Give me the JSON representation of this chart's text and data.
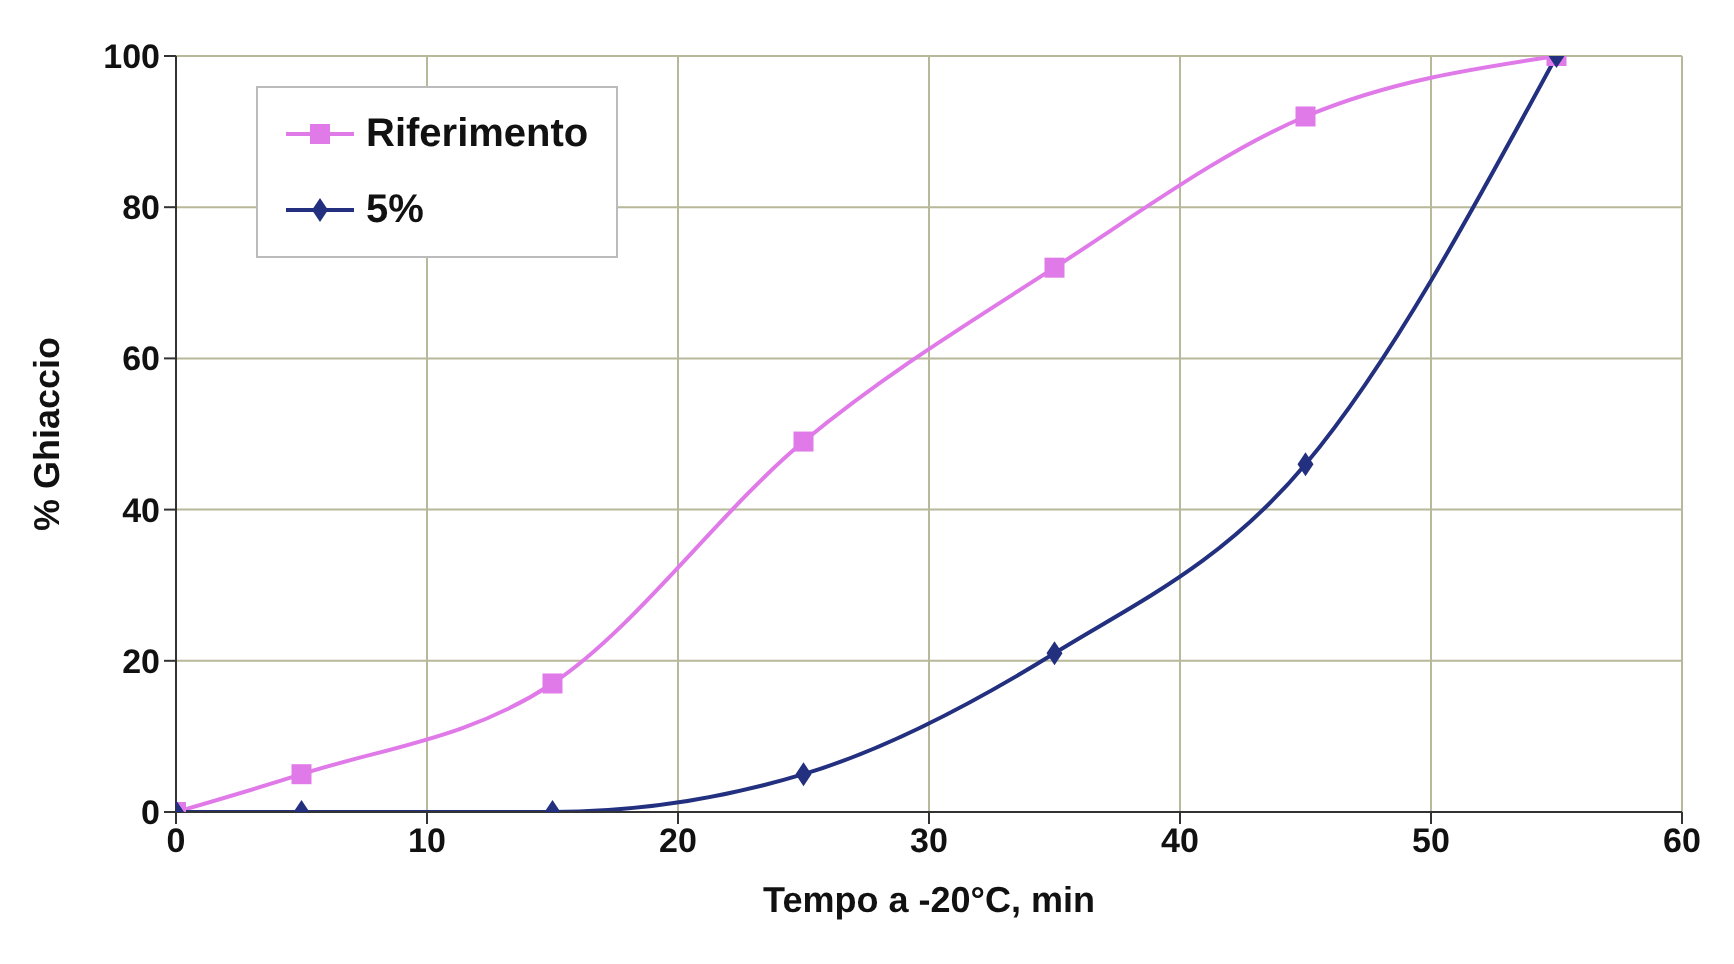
{
  "chart_data": {
    "type": "line",
    "xlabel": "Tempo a -20°C, min",
    "ylabel": "% Ghiaccio",
    "x": [
      0,
      5,
      15,
      25,
      35,
      45,
      55
    ],
    "series": [
      {
        "name": "Riferimento",
        "color": "#e07ae8",
        "marker": "square",
        "values": [
          0,
          5,
          17,
          49,
          72,
          92,
          100
        ]
      },
      {
        "name": "5%",
        "color": "#23307f",
        "marker": "diamond",
        "values": [
          0,
          0,
          0,
          5,
          21,
          46,
          100
        ]
      }
    ],
    "xlim": [
      0,
      60
    ],
    "xticks": [
      0,
      10,
      20,
      30,
      40,
      50,
      60
    ],
    "ylim": [
      0,
      100
    ],
    "yticks": [
      0,
      20,
      40,
      60,
      80,
      100
    ],
    "grid": true,
    "legend": "top left",
    "line_style": "solid"
  }
}
